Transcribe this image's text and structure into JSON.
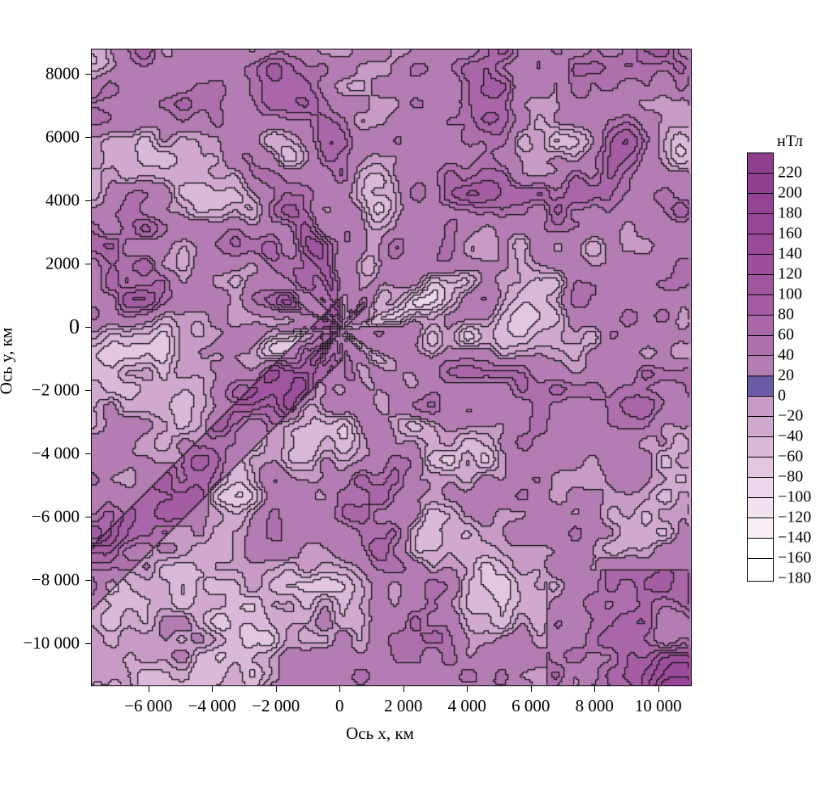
{
  "chart_data": {
    "type": "heatmap",
    "subtype": "filled contour map",
    "title": "",
    "xlabel": "Ось x, км",
    "ylabel": "Ось y, км",
    "xlim": [
      -7800,
      11050
    ],
    "ylim": [
      -11350,
      8800
    ],
    "x_ticks": [
      -6000,
      -4000,
      -2000,
      0,
      2000,
      4000,
      6000,
      8000,
      10000
    ],
    "x_tick_labels": [
      "−6 000",
      "−4 000",
      "−2 000",
      "0",
      "2 000",
      "4 000",
      "6 000",
      "8 000",
      "10 000"
    ],
    "y_ticks": [
      8000,
      6000,
      4000,
      2000,
      0,
      -2000,
      -4000,
      -6000,
      -8000,
      -10000
    ],
    "y_tick_labels": [
      "8000",
      "6000",
      "4000",
      "2000",
      "0",
      "−2 000",
      "−4 000",
      "−6 000",
      "−8 000",
      "−10 000"
    ],
    "grid": false,
    "colorbar": {
      "unit": "нТл",
      "position": "right",
      "levels": [
        220,
        200,
        180,
        160,
        140,
        120,
        100,
        80,
        60,
        40,
        20,
        0,
        -20,
        -40,
        -60,
        -80,
        -100,
        -120,
        -140,
        -160,
        -180
      ],
      "level_labels": [
        "220",
        "200",
        "180",
        "160",
        "140",
        "120",
        "100",
        "80",
        "60",
        "40",
        "20",
        "0",
        "−20",
        "−40",
        "−60",
        "−80",
        "−100",
        "−120",
        "−140",
        "−160",
        "−180"
      ],
      "band_colors": [
        "#8e3f8e",
        "#913f90",
        "#944294",
        "#974697",
        "#9a4a99",
        "#9d4f9c",
        "#a0559f",
        "#a45da3",
        "#a966a8",
        "#ae70ad",
        "#b37cb2",
        "#6b5aa5",
        "#c79bc6",
        "#d1a9cf",
        "#dab8d8",
        "#e3c7e1",
        "#ebd6ea",
        "#f2e2f0",
        "#f8eef7",
        "#ffffff",
        "#ffffff"
      ]
    },
    "description_of_field": "radial pattern of anomalies centred near (0,0) with diagonal streaks; dominant 0–20 nT band"
  }
}
